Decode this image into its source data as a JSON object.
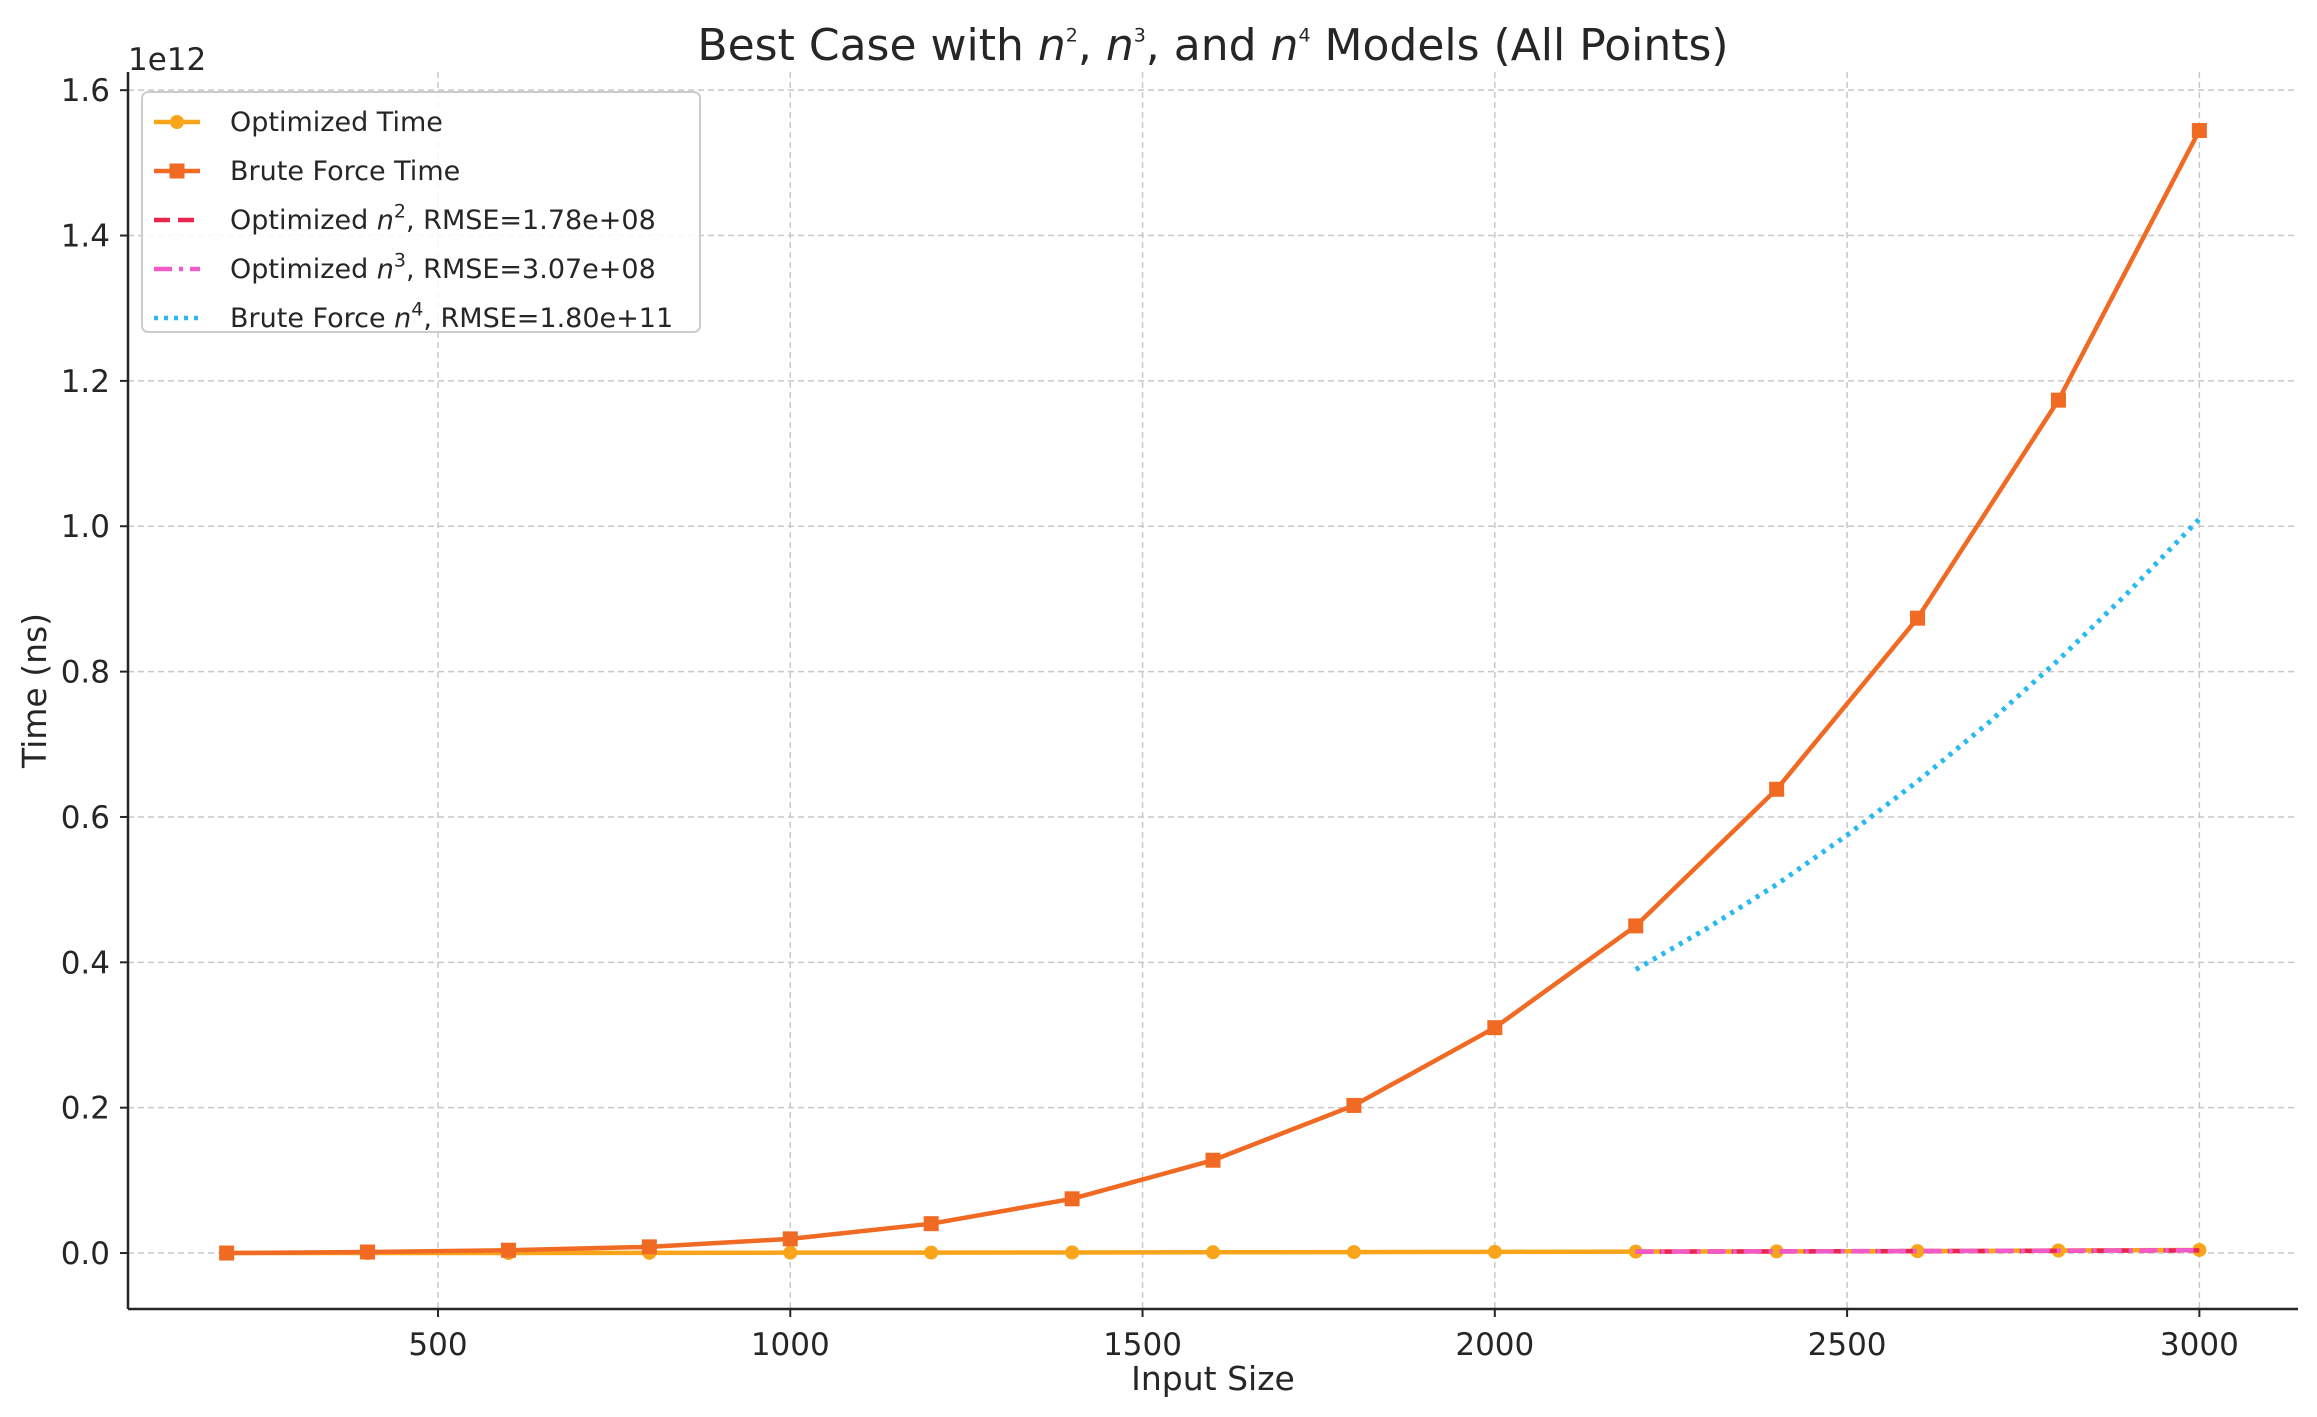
{
  "chart_data": {
    "type": "line",
    "title": {
      "parts": [
        {
          "t": "Best Case with "
        },
        {
          "t": "n",
          "style": "italic"
        },
        {
          "t": "2",
          "style": "sup"
        },
        {
          "t": ", "
        },
        {
          "t": "n",
          "style": "italic"
        },
        {
          "t": "3",
          "style": "sup"
        },
        {
          "t": ", and "
        },
        {
          "t": "n",
          "style": "italic"
        },
        {
          "t": "4",
          "style": "sup"
        },
        {
          "t": " Models (All Points)"
        }
      ]
    },
    "xlabel": "Input Size",
    "ylabel": "Time (ns)",
    "y_offset_label": "1e12",
    "xlim": [
      60,
      3140
    ],
    "ylim": [
      -0.077,
      1.625
    ],
    "y_scale_note": "values in units of 1e12 ns",
    "xticks": [
      500,
      1000,
      1500,
      2000,
      2500,
      3000
    ],
    "xtick_labels": [
      "500",
      "1000",
      "1500",
      "2000",
      "2500",
      "3000"
    ],
    "yticks": [
      0.0,
      0.2,
      0.4,
      0.6,
      0.8,
      1.0,
      1.2,
      1.4,
      1.6
    ],
    "ytick_labels": [
      "0.0",
      "0.2",
      "0.4",
      "0.6",
      "0.8",
      "1.0",
      "1.2",
      "1.4",
      "1.6"
    ],
    "grid": true,
    "legend_position": "top-left",
    "series": [
      {
        "name": "Optimized Time",
        "color": "#F9A51B",
        "line": "solid",
        "marker": "circle",
        "x": [
          200,
          400,
          600,
          800,
          1000,
          1200,
          1400,
          1600,
          1800,
          2000,
          2200,
          2400,
          2600,
          2800,
          3000
        ],
        "y": [
          0.0,
          0.0,
          0.0,
          0.0003,
          0.0005,
          0.0006,
          0.0008,
          0.001,
          0.0013,
          0.0016,
          0.002,
          0.0023,
          0.0026,
          0.0035,
          0.0042
        ]
      },
      {
        "name": "Brute Force Time",
        "color": "#F06A24",
        "line": "solid",
        "marker": "square",
        "x": [
          200,
          400,
          600,
          800,
          1000,
          1200,
          1400,
          1600,
          1800,
          2000,
          2200,
          2400,
          2600,
          2800,
          3000
        ],
        "y": [
          0.0,
          0.0014,
          0.0039,
          0.0085,
          0.0195,
          0.0404,
          0.0746,
          0.1277,
          0.2031,
          0.3101,
          0.4501,
          0.6381,
          0.8735,
          1.1735,
          1.5445
        ]
      },
      {
        "name_parts": [
          {
            "t": "Optimized "
          },
          {
            "t": "n",
            "style": "italic"
          },
          {
            "t": "2",
            "style": "sup"
          },
          {
            "t": ", RMSE=1.78e+08"
          }
        ],
        "color": "#E8264F",
        "line": "dashed",
        "x": [
          2200,
          2400,
          2600,
          2800,
          3000
        ],
        "y": [
          0.0019,
          0.0022,
          0.0026,
          0.0031,
          0.0036
        ]
      },
      {
        "name_parts": [
          {
            "t": "Optimized "
          },
          {
            "t": "n",
            "style": "italic"
          },
          {
            "t": "3",
            "style": "sup"
          },
          {
            "t": ", RMSE=3.07e+08"
          }
        ],
        "color": "#F05BC8",
        "line": "dashdot",
        "x": [
          2200,
          2400,
          2600,
          2800,
          3000
        ],
        "y": [
          0.0019,
          0.0023,
          0.0028,
          0.0033,
          0.0039
        ]
      },
      {
        "name_parts": [
          {
            "t": "Brute Force "
          },
          {
            "t": "n",
            "style": "italic"
          },
          {
            "t": "4",
            "style": "sup"
          },
          {
            "t": ", RMSE=1.80e+11"
          }
        ],
        "color": "#27B9F0",
        "line": "dotted",
        "x": [
          2200,
          2300,
          2400,
          2500,
          2600,
          2700,
          2800,
          2900,
          3000
        ],
        "y": [
          0.39,
          0.446,
          0.507,
          0.575,
          0.649,
          0.729,
          0.816,
          0.91,
          1.01
        ]
      }
    ]
  }
}
